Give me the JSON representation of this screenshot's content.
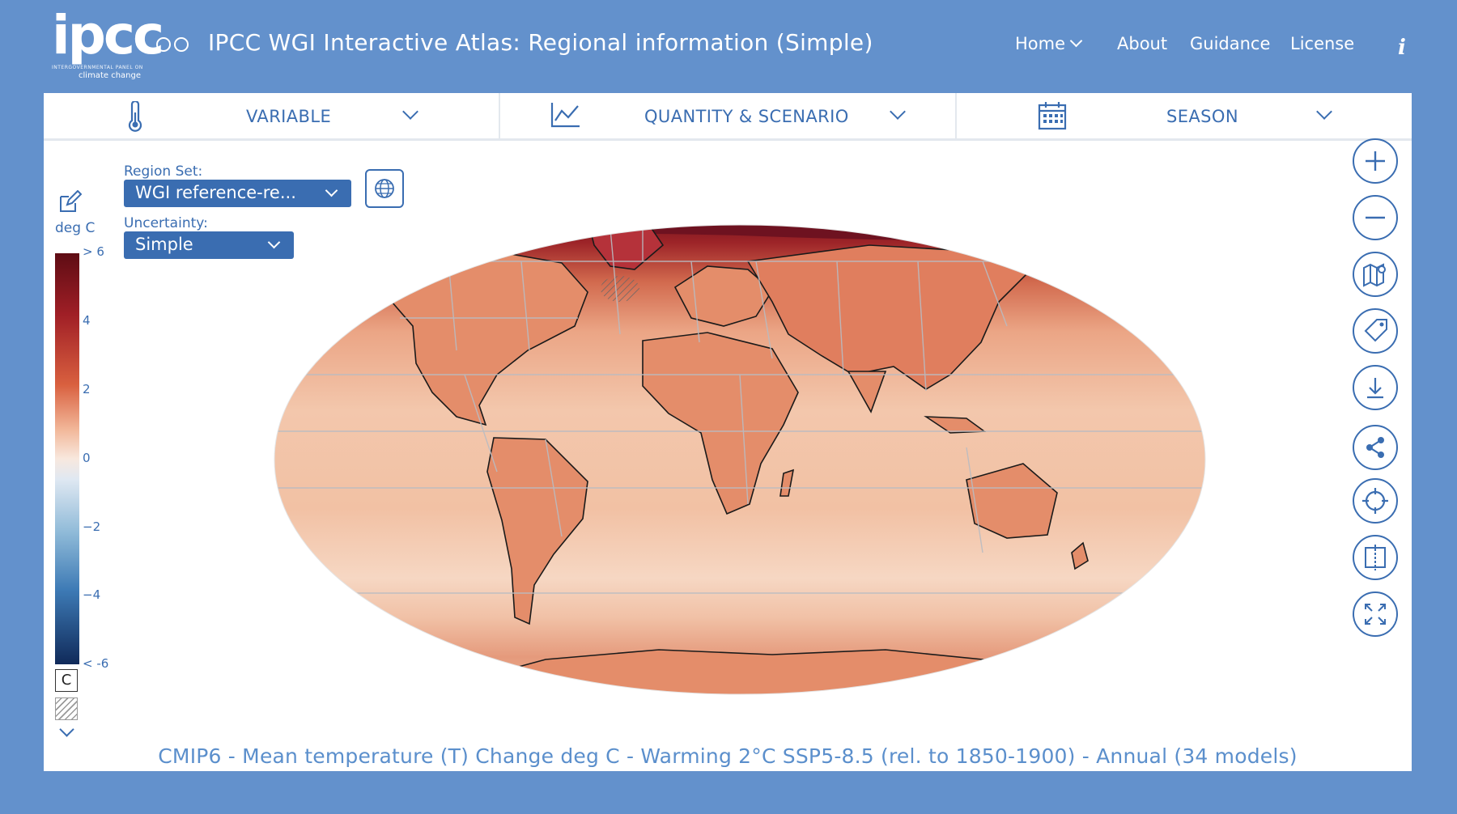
{
  "header": {
    "logo_word": "ipcc",
    "logo_subtitle_1": "INTERGOVERNMENTAL PANEL ON",
    "logo_subtitle_2": "climate change",
    "title": "IPCC WGI Interactive Atlas: Regional information (Simple)",
    "nav": {
      "home": "Home",
      "about": "About",
      "guidance": "Guidance",
      "license": "License"
    },
    "info_label": "i"
  },
  "toolbar": {
    "variable": "VARIABLE",
    "quantity": "QUANTITY & SCENARIO",
    "season": "SEASON"
  },
  "legend": {
    "unit": "deg C",
    "ticks": [
      "> 6",
      "4",
      "2",
      "0",
      "−2",
      "−4",
      "< -6"
    ],
    "c_label": "C",
    "colors": {
      "max": "#5e0c14",
      "mid": "#f8e8de",
      "min": "#102a5a"
    }
  },
  "controls": {
    "region_set_label": "Region Set:",
    "region_set_value": "WGI reference-re...",
    "uncertainty_label": "Uncertainty:",
    "uncertainty_value": "Simple"
  },
  "right_buttons": [
    "zoom-in-icon",
    "zoom-out-icon",
    "map-pin-icon",
    "tag-icon",
    "download-icon",
    "share-icon",
    "crosshair-icon",
    "compare-icon",
    "fullscreen-icon"
  ],
  "caption": "CMIP6 - Mean temperature (T) Change deg C - Warming 2°C SSP5-8.5 (rel. to 1850-1900) - Annual (34 models)",
  "theme": {
    "background": "#6391cc",
    "accent": "#3a6db1"
  }
}
